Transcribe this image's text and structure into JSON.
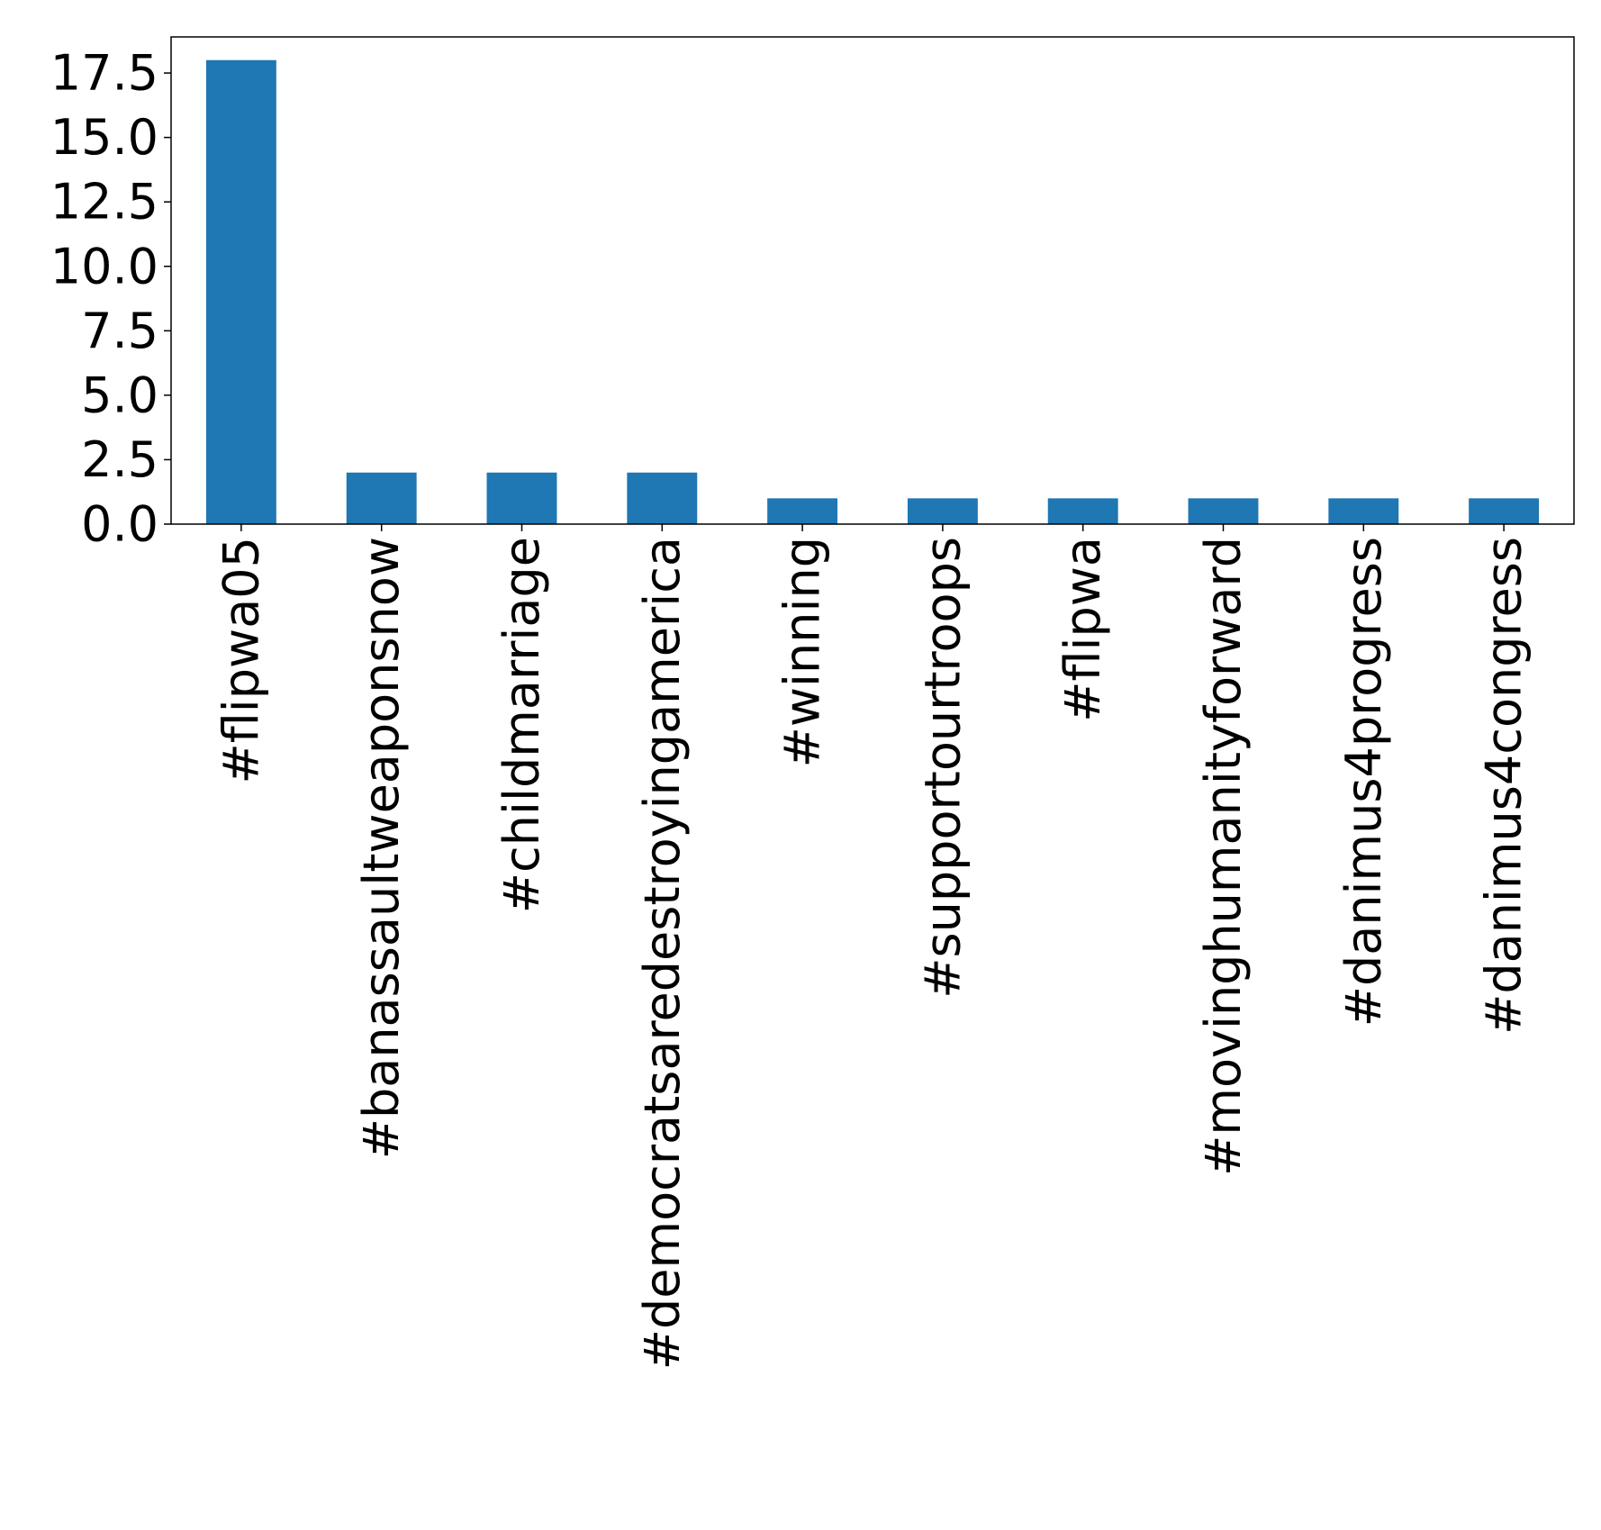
{
  "chart_data": {
    "type": "bar",
    "title": "",
    "xlabel": "",
    "ylabel": "",
    "categories": [
      "#flipwa05",
      "#banassaultweaponsnow",
      "#childmarriage",
      "#democratsaredestroyingamerica",
      "#winning",
      "#supportourtroops",
      "#flipwa",
      "#movinghumanityforward",
      "#danimus4progress",
      "#danimus4congress"
    ],
    "values": [
      18,
      2,
      2,
      2,
      1,
      1,
      1,
      1,
      1,
      1
    ],
    "ylim": [
      0,
      18.9
    ],
    "yticks": [
      "0.0",
      "2.5",
      "5.0",
      "7.5",
      "10.0",
      "12.5",
      "15.0",
      "17.5"
    ],
    "grid": false,
    "bar_color": "#1f77b4"
  }
}
